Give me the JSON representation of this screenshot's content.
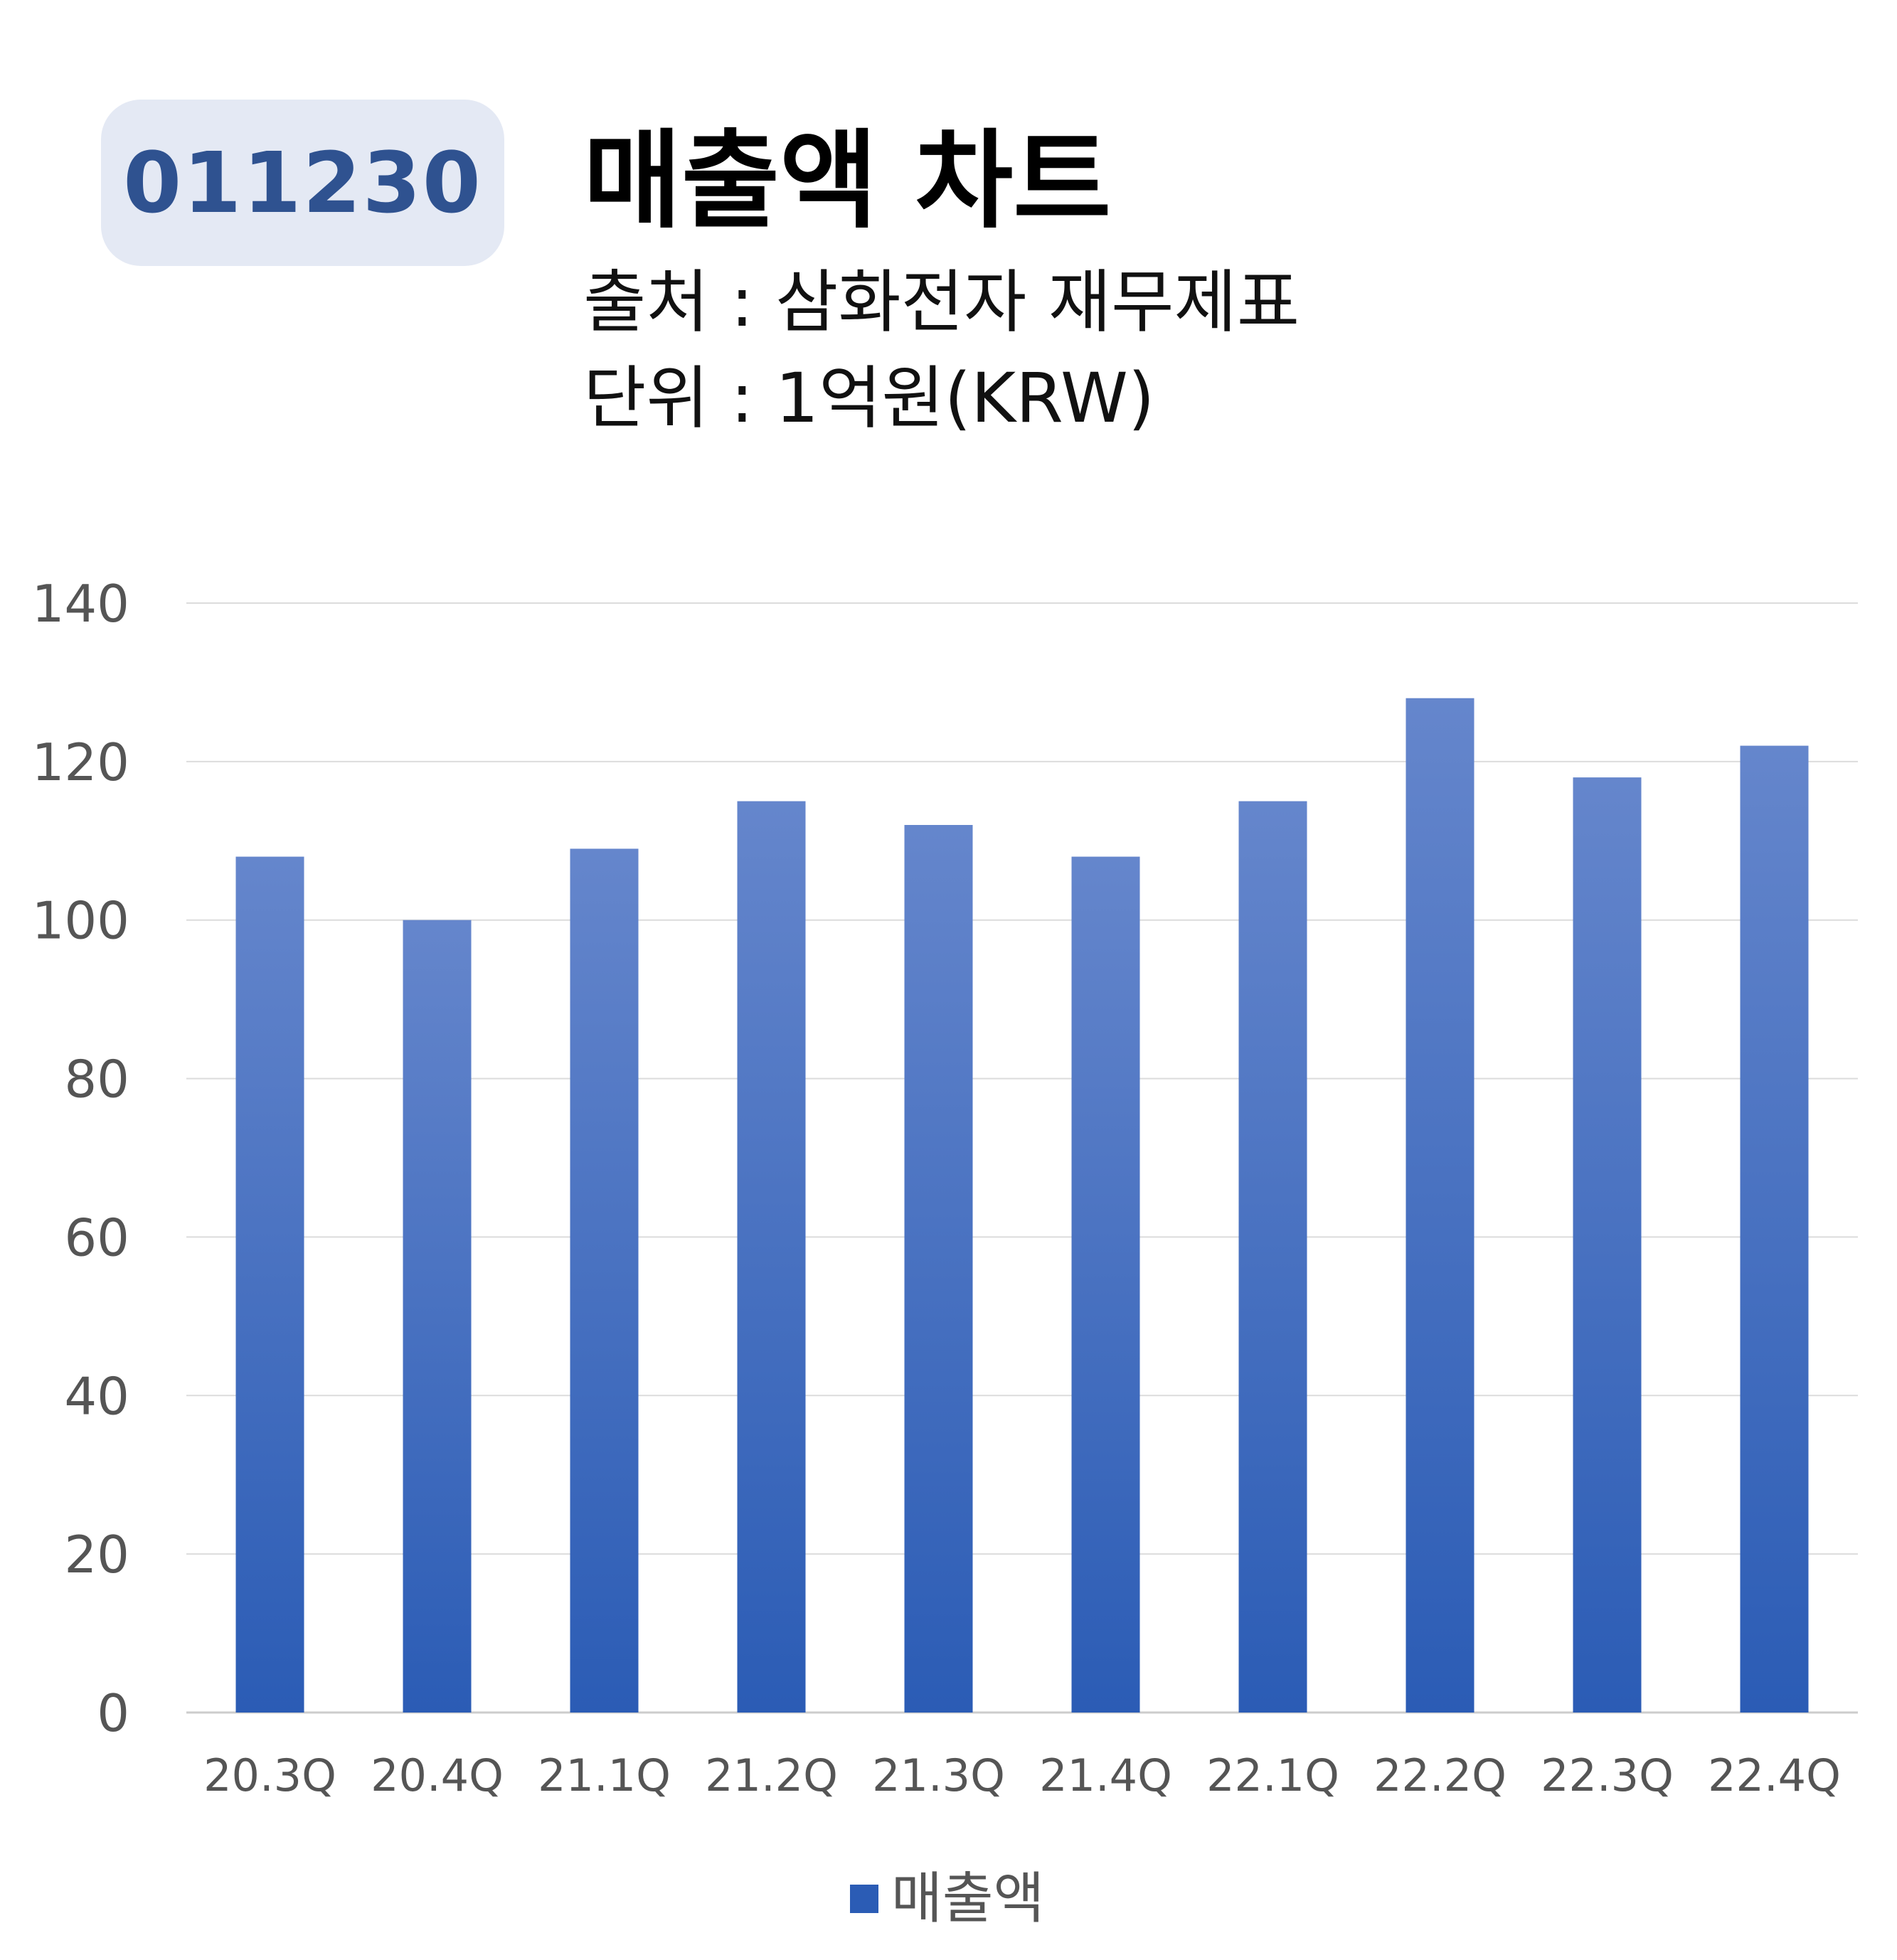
{
  "badge": {
    "ticker": "011230"
  },
  "header": {
    "title": "매출액 차트",
    "source": "출처 : 삼화전자 재무제표",
    "unit": "단위 : 1억원(KRW)"
  },
  "colors": {
    "bar_top": "#6586cc",
    "bar_bottom": "#2b5cb5",
    "grid": "#dcdcdc",
    "badge_bg": "#e4e9f4",
    "badge_text": "#2f5290"
  },
  "chart_data": {
    "type": "bar",
    "categories": [
      "20.3Q",
      "20.4Q",
      "21.1Q",
      "21.2Q",
      "21.3Q",
      "21.4Q",
      "22.1Q",
      "22.2Q",
      "22.3Q",
      "22.4Q"
    ],
    "series": [
      {
        "name": "매출액",
        "values": [
          108,
          100,
          109,
          115,
          112,
          108,
          115,
          128,
          118,
          122
        ]
      }
    ],
    "ylim": [
      0,
      140
    ],
    "yticks": [
      0,
      20,
      40,
      60,
      80,
      100,
      120,
      140
    ],
    "grid": true,
    "legend": "bottom-center"
  }
}
